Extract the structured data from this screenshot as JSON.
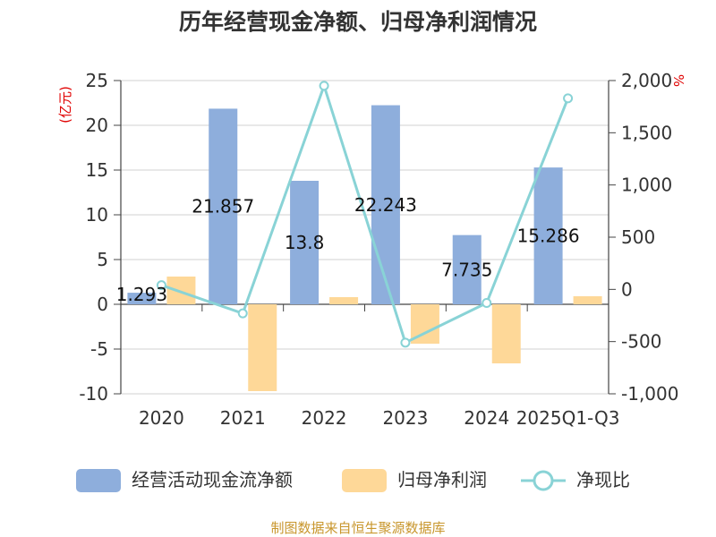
{
  "chart_data": {
    "type": "bar",
    "title": "历年经营现金净额、归母净利润情况",
    "categories": [
      "2020",
      "2021",
      "2022",
      "2023",
      "2024",
      "2025Q1-Q3"
    ],
    "series": [
      {
        "name": "经营活动现金流净额",
        "type": "bar",
        "axis": "left",
        "color": "#8eaedc",
        "values": [
          1.293,
          21.857,
          13.8,
          22.243,
          7.735,
          15.286
        ],
        "labels": [
          "1.293",
          "21.857",
          "13.8",
          "22.243",
          "7.735",
          "15.286"
        ]
      },
      {
        "name": "归母净利润",
        "type": "bar",
        "axis": "left",
        "color": "#fed898",
        "values": [
          3.1,
          -9.7,
          0.8,
          -4.4,
          -6.6,
          0.9
        ]
      },
      {
        "name": "净现比",
        "type": "line",
        "axis": "right",
        "color": "#89d3d6",
        "values": [
          40,
          -230,
          1950,
          -510,
          -130,
          1830
        ]
      }
    ],
    "y_left": {
      "label": "(亿元)",
      "ylim": [
        -10,
        25
      ],
      "ticks": [
        "25",
        "20",
        "15",
        "10",
        "5",
        "0",
        "-5",
        "-10"
      ]
    },
    "y_right": {
      "label": "%",
      "ylim": [
        -1000,
        2000
      ],
      "ticks": [
        "2,000",
        "1,500",
        "1,000",
        "500",
        "0",
        "-500",
        "-1,000"
      ]
    },
    "legend": {
      "position": "bottom"
    },
    "source": "制图数据来自恒生聚源数据库"
  }
}
